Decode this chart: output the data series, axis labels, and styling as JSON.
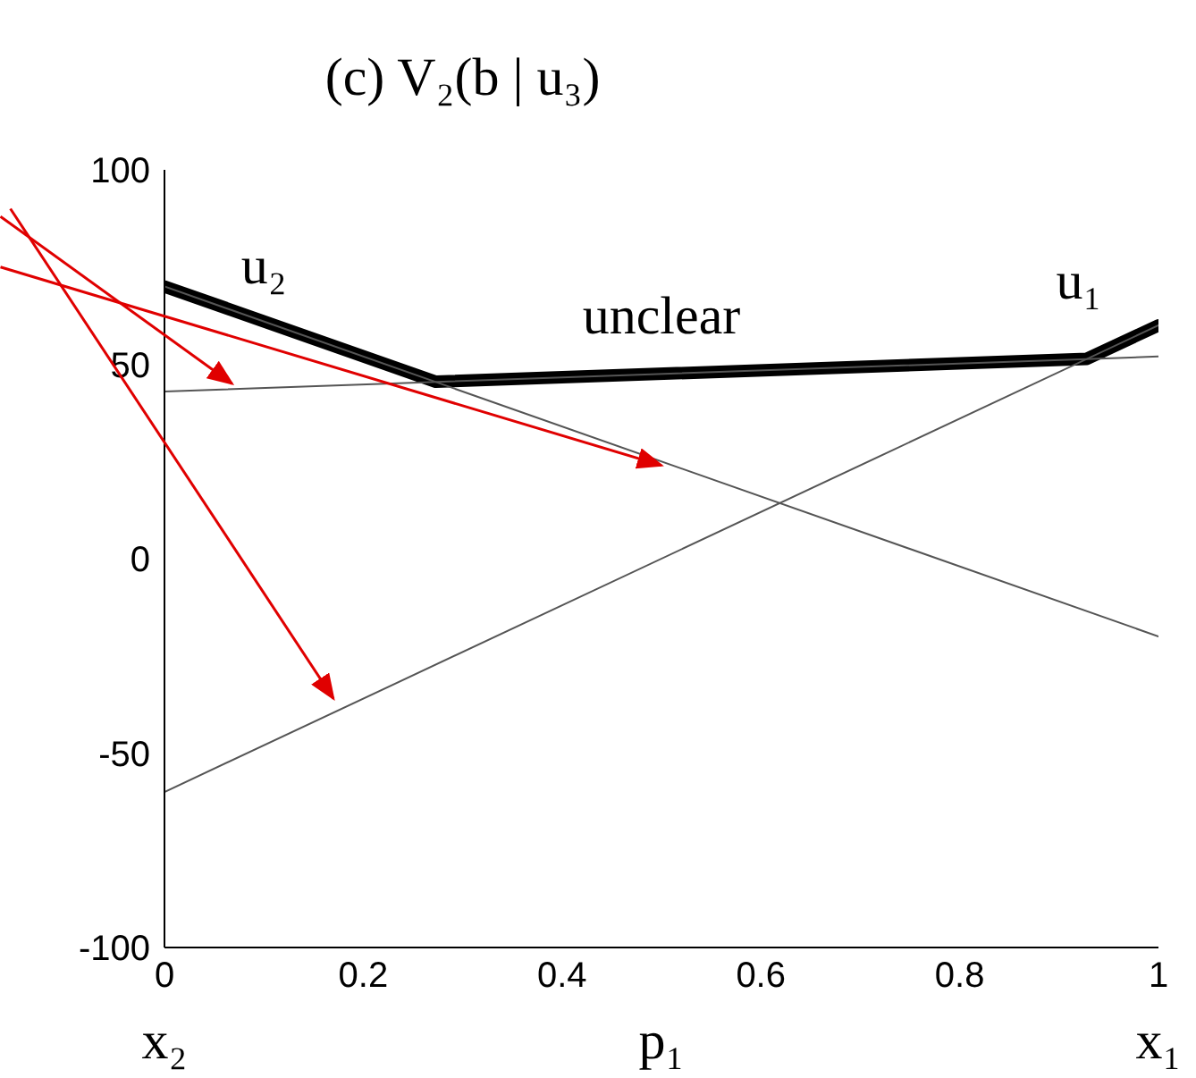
{
  "chart_data": {
    "type": "line",
    "title": "(c)    V₂(b | u₃)",
    "xlabel": "p₁",
    "xlim": [
      0,
      1
    ],
    "xticks": [
      0,
      0.2,
      0.4,
      0.6,
      0.8,
      1
    ],
    "ylim": [
      -100,
      100
    ],
    "yticks": [
      -100,
      -50,
      0,
      50,
      100
    ],
    "marker": "none",
    "line_style": "solid",
    "series": [
      {
        "color": "#000000",
        "x": [
          0,
          0.273,
          0.928,
          1
        ],
        "values": [
          70,
          45.5,
          51.4,
          60
        ]
      },
      {
        "color": "#555555",
        "x": [
          0,
          1
        ],
        "values": [
          43,
          52
        ]
      },
      {
        "color": "#555555",
        "x": [
          0,
          1
        ],
        "values": [
          70,
          -20
        ]
      },
      {
        "color": "#555555",
        "x": [
          0,
          1
        ],
        "values": [
          -60,
          60
        ]
      }
    ],
    "annotations": [
      "u₂",
      "unclear",
      "u₁",
      "x₂",
      "x₁"
    ]
  }
}
